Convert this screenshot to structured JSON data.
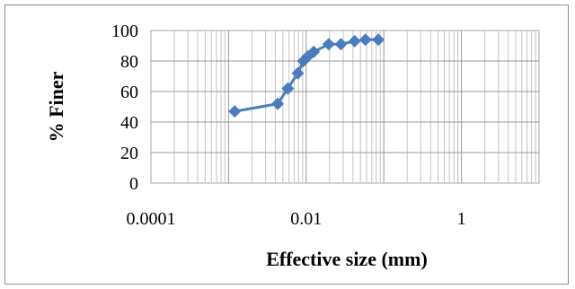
{
  "chart_data": {
    "type": "scatter",
    "mode": "lines+markers",
    "xscale": "log",
    "xlabel": "Effective size (mm)",
    "ylabel": "% Finer",
    "xlim": [
      0.0001,
      10
    ],
    "ylim": [
      0,
      100
    ],
    "x_tick_labels": [
      "0.0001",
      "0.01",
      "1"
    ],
    "y_tick_labels": [
      "0",
      "20",
      "40",
      "60",
      "80",
      "100"
    ],
    "grid": {
      "x_major": true,
      "x_minor": true,
      "y_major": true
    },
    "legend": "none",
    "series": [
      {
        "marker": "diamond",
        "color": "#4a7dbf",
        "x": [
          0.0012,
          0.0043,
          0.0058,
          0.0078,
          0.0092,
          0.0105,
          0.0125,
          0.0195,
          0.028,
          0.042,
          0.058,
          0.085
        ],
        "y": [
          47,
          52,
          62,
          72,
          80,
          83,
          86,
          91,
          91,
          93,
          94,
          94
        ]
      }
    ]
  }
}
